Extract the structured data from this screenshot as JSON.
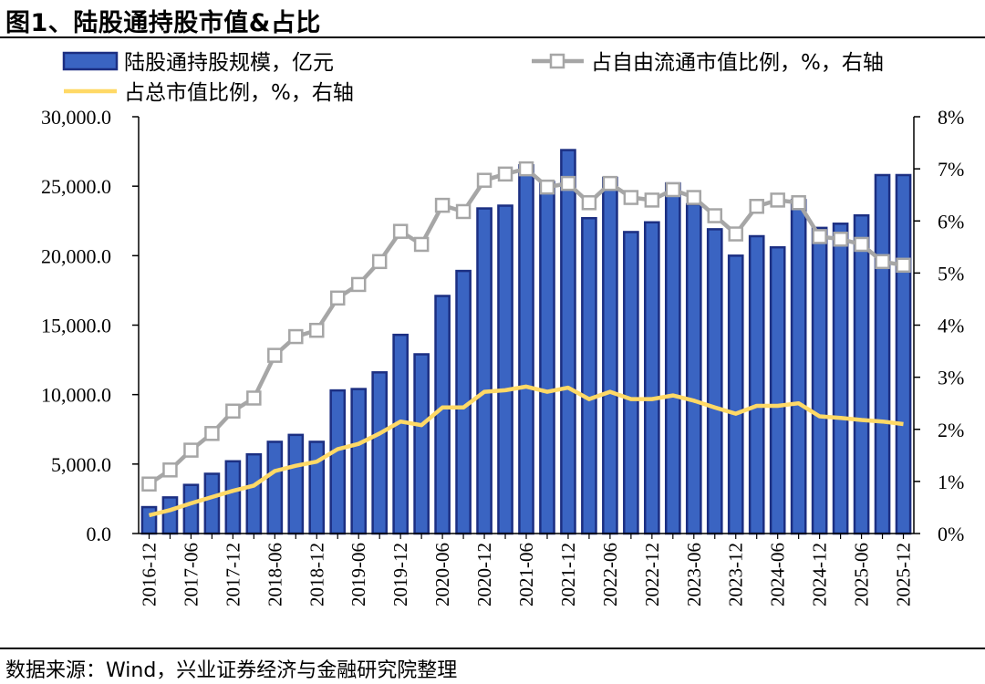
{
  "header": {
    "title": "图1、陆股通持股市值&占比",
    "source": "数据来源：Wind，兴业证券经济与金融研究院整理"
  },
  "colors": {
    "bar_fill": "#3a64c2",
    "bar_edge": "#1c2f82",
    "gray_line": "#a6a6a6",
    "yellow_line": "#ffd966"
  },
  "chart_data": {
    "type": "bar+line",
    "title": "陆股通持股市值&占比",
    "categories": [
      "2016-12",
      "2017-03",
      "2017-06",
      "2017-09",
      "2017-12",
      "2018-03",
      "2018-06",
      "2018-09",
      "2018-12",
      "2019-03",
      "2019-06",
      "2019-09",
      "2019-12",
      "2020-03",
      "2020-06",
      "2020-09",
      "2020-12",
      "2021-03",
      "2021-06",
      "2021-09",
      "2021-12",
      "2022-03",
      "2022-06",
      "2022-09",
      "2022-12",
      "2023-03",
      "2023-06",
      "2023-09",
      "2023-12",
      "2024-03",
      "2024-06",
      "2024-09",
      "2024-12",
      "2025-03",
      "2025-06",
      "2025-09",
      "2025-12"
    ],
    "x_tick_labels": [
      "2016-12",
      "2017-06",
      "2017-12",
      "2018-06",
      "2018-12",
      "2019-06",
      "2019-12",
      "2020-06",
      "2020-12",
      "2021-06",
      "2021-12",
      "2022-06",
      "2022-12",
      "2023-06",
      "2023-12",
      "2024-06",
      "2024-12",
      "2025-06",
      "2025-12"
    ],
    "series": [
      {
        "name": "陆股通持股规模，亿元",
        "type": "bar",
        "axis": "left",
        "values": [
          1900,
          2600,
          3500,
          4300,
          5200,
          5700,
          6600,
          7100,
          6600,
          10300,
          10400,
          11600,
          14300,
          12900,
          17100,
          18900,
          23400,
          23600,
          26500,
          25300,
          27600,
          22700,
          25600,
          21700,
          22400,
          25200,
          23700,
          21900,
          20000,
          21400,
          20600,
          24000,
          22000,
          22300,
          22900,
          25800,
          25800
        ]
      },
      {
        "name": "占自由流通市值比例，%，右轴",
        "type": "line",
        "axis": "right",
        "values": [
          0.95,
          1.22,
          1.6,
          1.92,
          2.35,
          2.6,
          3.42,
          3.78,
          3.9,
          4.52,
          4.78,
          5.22,
          5.8,
          5.55,
          6.3,
          6.18,
          6.78,
          6.9,
          7.0,
          6.65,
          6.72,
          6.35,
          6.72,
          6.45,
          6.4,
          6.6,
          6.45,
          6.1,
          5.75,
          6.28,
          6.4,
          6.35,
          5.7,
          5.65,
          5.55,
          5.22,
          5.15
        ]
      },
      {
        "name": "占总市值比例，%，右轴",
        "type": "line",
        "axis": "right",
        "values": [
          0.35,
          0.45,
          0.58,
          0.7,
          0.82,
          0.92,
          1.2,
          1.3,
          1.38,
          1.62,
          1.72,
          1.92,
          2.15,
          2.08,
          2.42,
          2.42,
          2.72,
          2.75,
          2.82,
          2.72,
          2.8,
          2.58,
          2.72,
          2.58,
          2.58,
          2.65,
          2.55,
          2.42,
          2.3,
          2.45,
          2.45,
          2.5,
          2.25,
          2.22,
          2.18,
          2.15,
          2.1
        ]
      }
    ],
    "y_left": {
      "ylim": [
        0,
        30000
      ],
      "tick_labels": [
        "0.0",
        "5,000.0",
        "10,000.0",
        "15,000.0",
        "20,000.0",
        "25,000.0",
        "30,000.0"
      ]
    },
    "y_right": {
      "ylim": [
        0,
        8
      ],
      "tick_labels": [
        "0%",
        "1%",
        "2%",
        "3%",
        "4%",
        "5%",
        "6%",
        "7%",
        "8%"
      ]
    },
    "legend": [
      {
        "label": "陆股通持股规模，亿元",
        "symbol": "bar"
      },
      {
        "label": "占自由流通市值比例，%，右轴",
        "symbol": "gray-line-square"
      },
      {
        "label": "占总市值比例，%，右轴",
        "symbol": "yellow-line"
      }
    ],
    "legend_position": "top"
  }
}
